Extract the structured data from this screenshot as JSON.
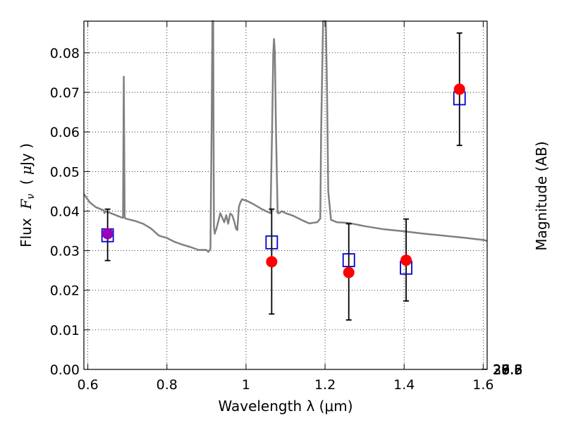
{
  "chart_data": {
    "type": "scatter",
    "xlabel": "Wavelength  λ (μm)",
    "ylabel_parts": [
      "Flux  ",
      "F",
      "ν",
      "  ( ",
      "μ",
      "Jy )"
    ],
    "y2label": "Magnitude (AB)",
    "xlim": [
      0.59,
      1.61
    ],
    "ylim": [
      0.0,
      0.088
    ],
    "grid": true,
    "x_ticks": [
      0.6,
      0.8,
      1.0,
      1.2,
      1.4,
      1.6
    ],
    "x_tick_labels": [
      "0.6",
      "0.8",
      "1",
      "1.2",
      "1.4",
      "1.6"
    ],
    "y_ticks": [
      0.0,
      0.01,
      0.02,
      0.03,
      0.04,
      0.05,
      0.06,
      0.07,
      0.08
    ],
    "y_tick_labels": [
      "0.00",
      "0.01",
      "0.02",
      "0.03",
      "0.04",
      "0.05",
      "0.06",
      "0.07",
      "0.08"
    ],
    "y2_ticks": [
      26.6,
      26.8,
      27.0,
      27.2,
      27.5,
      28.0,
      28.5,
      29.0,
      30.0
    ],
    "y2_tick_labels": [
      "26.6",
      "26.8",
      "27",
      "27.2",
      "27.5",
      "28",
      "28.5",
      "29",
      "30"
    ],
    "colors": {
      "spectrum": "#808080",
      "observed": "#ff0000",
      "model": "#0000cc",
      "errorbar": "#000000",
      "overlap": "#9900bb"
    },
    "spectrum": {
      "x": [
        0.59,
        0.605,
        0.62,
        0.635,
        0.64,
        0.642,
        0.645,
        0.66,
        0.675,
        0.685,
        0.689,
        0.691,
        0.693,
        0.695,
        0.7,
        0.72,
        0.74,
        0.76,
        0.78,
        0.8,
        0.82,
        0.84,
        0.86,
        0.88,
        0.9,
        0.905,
        0.91,
        0.913,
        0.915,
        0.917,
        0.918,
        0.919,
        0.921,
        0.923,
        0.925,
        0.935,
        0.945,
        0.95,
        0.955,
        0.96,
        0.965,
        0.97,
        0.975,
        0.978,
        0.982,
        0.985,
        0.99,
        0.995,
        1.0,
        1.02,
        1.04,
        1.055,
        1.062,
        1.066,
        1.069,
        1.071,
        1.073,
        1.076,
        1.08,
        1.085,
        1.09,
        1.1,
        1.12,
        1.14,
        1.16,
        1.18,
        1.188,
        1.19,
        1.195,
        1.198,
        1.2,
        1.202,
        1.205,
        1.208,
        1.215,
        1.23,
        1.26,
        1.3,
        1.35,
        1.4,
        1.45,
        1.5,
        1.55,
        1.6,
        1.61
      ],
      "y": [
        0.0443,
        0.0422,
        0.041,
        0.0404,
        0.0402,
        0.0395,
        0.04,
        0.0394,
        0.0388,
        0.0384,
        0.0383,
        0.074,
        0.0385,
        0.0381,
        0.038,
        0.0375,
        0.0368,
        0.0356,
        0.0338,
        0.0332,
        0.0322,
        0.0315,
        0.0309,
        0.0302,
        0.0302,
        0.0297,
        0.0305,
        0.06,
        0.088,
        0.088,
        0.06,
        0.036,
        0.0343,
        0.035,
        0.0355,
        0.0395,
        0.0372,
        0.039,
        0.0368,
        0.0394,
        0.039,
        0.0375,
        0.0355,
        0.0352,
        0.041,
        0.042,
        0.043,
        0.0428,
        0.0427,
        0.0417,
        0.0405,
        0.0398,
        0.0395,
        0.06,
        0.08,
        0.0835,
        0.08,
        0.06,
        0.0395,
        0.0395,
        0.04,
        0.0395,
        0.0388,
        0.0378,
        0.0369,
        0.0372,
        0.0381,
        0.06,
        0.088,
        0.088,
        0.088,
        0.088,
        0.07,
        0.045,
        0.0378,
        0.0372,
        0.037,
        0.0362,
        0.0354,
        0.0349,
        0.0343,
        0.0338,
        0.0333,
        0.0327,
        0.0325
      ]
    },
    "observed": {
      "x": [
        0.65,
        1.065,
        1.26,
        1.405,
        1.54
      ],
      "y": [
        0.0343,
        0.0272,
        0.0245,
        0.0276,
        0.0708
      ],
      "err_low": [
        0.0275,
        0.014,
        0.0125,
        0.0173,
        0.0566
      ],
      "err_high": [
        0.0405,
        0.0405,
        0.0368,
        0.038,
        0.085
      ]
    },
    "model": {
      "x": [
        0.65,
        1.065,
        1.26,
        1.405,
        1.54
      ],
      "y": [
        0.0339,
        0.0321,
        0.0276,
        0.0257,
        0.0685
      ]
    }
  }
}
